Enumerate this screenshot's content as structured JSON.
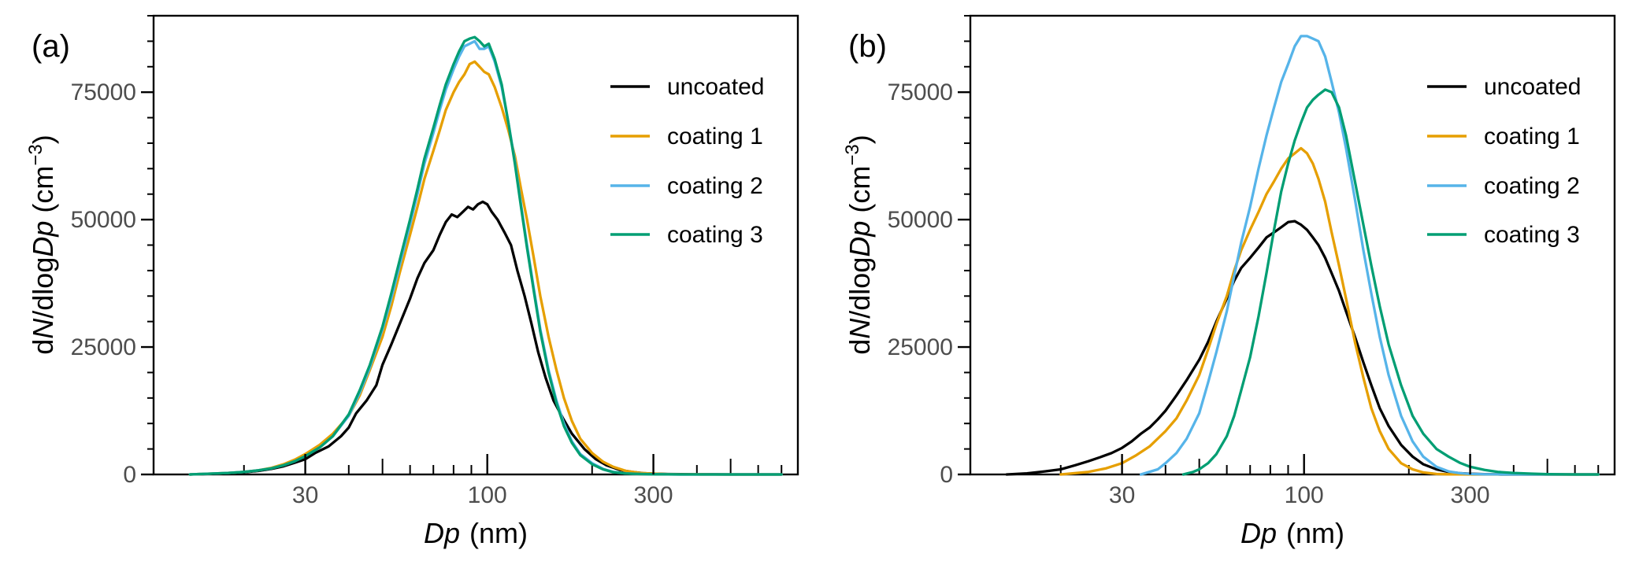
{
  "chart_data": [
    {
      "type": "line",
      "panel_label": "(a)",
      "xlabel_italic": "Dp",
      "xlabel_unit": "(nm)",
      "ylabel_parts": {
        "d": "d",
        "N": "N",
        "mid": "/dlog",
        "Dp": "Dp",
        "unit": " (cm",
        "exp": "−3",
        "close": ")"
      },
      "xscale": "log",
      "xlim": [
        11,
        780
      ],
      "ylim": [
        0,
        90000
      ],
      "xticks": [
        30,
        100,
        300
      ],
      "xtick_labels": [
        "30",
        "100",
        "300"
      ],
      "yticks": [
        0,
        25000,
        50000,
        75000
      ],
      "ytick_labels": [
        "0",
        "25000",
        "50000",
        "75000"
      ],
      "legend_position": "top-right",
      "series": [
        {
          "name": "uncoated",
          "color": "#000000",
          "x": [
            14,
            18,
            20,
            22,
            24,
            26,
            28,
            30,
            32,
            35,
            38,
            40,
            42,
            45,
            48,
            50,
            53,
            56,
            60,
            63,
            66,
            70,
            73,
            76,
            79,
            82,
            85,
            88,
            91,
            94,
            97,
            100,
            103,
            107,
            112,
            117,
            122,
            128,
            134,
            140,
            147,
            155,
            165,
            175,
            190,
            205,
            220,
            240,
            260,
            280,
            300,
            330,
            360,
            400,
            450,
            500,
            550,
            600,
            700
          ],
          "y": [
            0,
            200,
            400,
            700,
            1100,
            1600,
            2300,
            3000,
            4200,
            5500,
            7500,
            9200,
            12000,
            14500,
            17500,
            21500,
            25500,
            29500,
            34500,
            38500,
            41500,
            44000,
            47000,
            49500,
            51000,
            50500,
            51500,
            52500,
            52000,
            53000,
            53500,
            53000,
            51500,
            50000,
            47500,
            45000,
            40000,
            35000,
            29500,
            24000,
            19000,
            14500,
            11000,
            8000,
            5000,
            3000,
            1800,
            900,
            500,
            250,
            150,
            80,
            40,
            20,
            10,
            5,
            0,
            0,
            0
          ]
        },
        {
          "name": "coating 1",
          "color": "#E69F00",
          "x": [
            14,
            18,
            20,
            22,
            24,
            26,
            28,
            30,
            33,
            36,
            40,
            43,
            46,
            50,
            53,
            56,
            60,
            63,
            66,
            70,
            73,
            76,
            80,
            83,
            86,
            89,
            92,
            95,
            98,
            101,
            105,
            110,
            115,
            120,
            125,
            130,
            136,
            142,
            150,
            158,
            166,
            175,
            185,
            200,
            215,
            230,
            250,
            275,
            300,
            330,
            360,
            400,
            450,
            500,
            600,
            700
          ],
          "y": [
            0,
            300,
            500,
            800,
            1300,
            2000,
            2900,
            4000,
            5800,
            8000,
            11500,
            15500,
            20500,
            27000,
            33000,
            39500,
            47000,
            52500,
            58000,
            63500,
            67500,
            71500,
            75000,
            77000,
            78500,
            80500,
            81000,
            80000,
            79000,
            78500,
            76000,
            72000,
            67500,
            62500,
            56000,
            50000,
            42500,
            35000,
            27000,
            20500,
            15000,
            10500,
            7000,
            4200,
            2500,
            1500,
            700,
            300,
            150,
            60,
            20,
            10,
            0,
            0,
            0,
            0
          ]
        },
        {
          "name": "coating 2",
          "color": "#56B4E9",
          "x": [
            14,
            18,
            20,
            22,
            24,
            26,
            28,
            30,
            33,
            36,
            40,
            43,
            46,
            50,
            53,
            56,
            60,
            63,
            66,
            70,
            73,
            76,
            80,
            83,
            86,
            89,
            92,
            95,
            98,
            101,
            105,
            110,
            115,
            120,
            125,
            130,
            136,
            142,
            150,
            158,
            166,
            175,
            185,
            200,
            215,
            230,
            250,
            275,
            300,
            330,
            360,
            400,
            450,
            500,
            600,
            700
          ],
          "y": [
            0,
            300,
            500,
            800,
            1200,
            1800,
            2600,
            3600,
            5300,
            7500,
            11500,
            16000,
            21000,
            28500,
            34500,
            41000,
            49000,
            55000,
            61000,
            67000,
            71500,
            75500,
            79500,
            82000,
            84000,
            84500,
            85000,
            83500,
            83500,
            84000,
            81000,
            76000,
            69000,
            61500,
            53000,
            45000,
            36500,
            28500,
            20500,
            14500,
            10000,
            6500,
            4000,
            2200,
            1100,
            500,
            200,
            100,
            40,
            10,
            0,
            0,
            0,
            0,
            0,
            0
          ]
        },
        {
          "name": "coating 3",
          "color": "#009E73",
          "x": [
            14,
            18,
            20,
            22,
            24,
            26,
            28,
            30,
            33,
            36,
            40,
            43,
            46,
            50,
            53,
            56,
            60,
            63,
            66,
            70,
            73,
            76,
            80,
            83,
            86,
            89,
            92,
            95,
            98,
            101,
            105,
            110,
            115,
            120,
            125,
            130,
            136,
            142,
            150,
            158,
            166,
            175,
            185,
            200,
            215,
            230,
            250,
            275,
            300,
            330,
            360,
            400,
            450,
            500,
            600,
            700
          ],
          "y": [
            0,
            300,
            500,
            800,
            1200,
            1800,
            2600,
            3600,
            5300,
            7500,
            11800,
            16500,
            21500,
            29000,
            35500,
            42000,
            50000,
            56000,
            62000,
            68000,
            72500,
            76500,
            80500,
            83000,
            85000,
            85500,
            85800,
            85000,
            84000,
            84500,
            81500,
            76500,
            69000,
            61000,
            52500,
            44500,
            36000,
            28000,
            20000,
            14000,
            9500,
            6200,
            3800,
            2000,
            1000,
            450,
            180,
            80,
            30,
            10,
            0,
            0,
            0,
            0,
            0,
            0
          ]
        }
      ]
    },
    {
      "type": "line",
      "panel_label": "(b)",
      "xlabel_italic": "Dp",
      "xlabel_unit": "(nm)",
      "ylabel_parts": {
        "d": "d",
        "N": "N",
        "mid": "/dlog",
        "Dp": "Dp",
        "unit": " (cm",
        "exp": "−3",
        "close": ")"
      },
      "xscale": "log",
      "xlim": [
        11,
        780
      ],
      "ylim": [
        0,
        90000
      ],
      "xticks": [
        30,
        100,
        300
      ],
      "xtick_labels": [
        "30",
        "100",
        "300"
      ],
      "yticks": [
        0,
        25000,
        50000,
        75000
      ],
      "ytick_labels": [
        "0",
        "25000",
        "50000",
        "75000"
      ],
      "legend_position": "top-right",
      "series": [
        {
          "name": "uncoated",
          "color": "#000000",
          "x": [
            14,
            16,
            18,
            20,
            22,
            24,
            26,
            28,
            30,
            32,
            34,
            36,
            38,
            40,
            43,
            46,
            50,
            53,
            56,
            60,
            63,
            66,
            70,
            74,
            78,
            82,
            86,
            90,
            94,
            98,
            102,
            106,
            110,
            115,
            120,
            126,
            132,
            140,
            148,
            156,
            165,
            175,
            190,
            205,
            220,
            240,
            260,
            280,
            300,
            330,
            360,
            400,
            450,
            500,
            600,
            700
          ],
          "y": [
            0,
            200,
            600,
            1000,
            1800,
            2600,
            3400,
            4200,
            5200,
            6500,
            8000,
            9200,
            10800,
            12500,
            15500,
            18500,
            22500,
            26000,
            30000,
            34500,
            38000,
            40500,
            42500,
            44500,
            46500,
            47500,
            48500,
            49500,
            49700,
            49000,
            48000,
            46500,
            45000,
            42500,
            39500,
            36000,
            32000,
            27000,
            22000,
            17500,
            13000,
            9500,
            5800,
            3500,
            2000,
            1000,
            500,
            250,
            120,
            50,
            20,
            0,
            0,
            0,
            0,
            0
          ]
        },
        {
          "name": "coating 1",
          "color": "#E69F00",
          "x": [
            20,
            24,
            27,
            30,
            33,
            36,
            40,
            43,
            46,
            50,
            53,
            56,
            60,
            63,
            66,
            70,
            74,
            78,
            82,
            86,
            90,
            94,
            98,
            102,
            106,
            110,
            115,
            120,
            126,
            132,
            140,
            148,
            156,
            165,
            175,
            190,
            205,
            220,
            240,
            260,
            280,
            300,
            330,
            360,
            400,
            450,
            500,
            600,
            700
          ],
          "y": [
            0,
            500,
            1200,
            2200,
            3800,
            5500,
            8500,
            11000,
            14500,
            19500,
            24500,
            29500,
            35000,
            40000,
            44000,
            48000,
            51500,
            55000,
            57500,
            60000,
            62000,
            63000,
            64000,
            63000,
            61000,
            58000,
            53500,
            47500,
            41000,
            34500,
            26000,
            19000,
            13000,
            8500,
            5000,
            2200,
            1000,
            400,
            100,
            30,
            10,
            0,
            0,
            0,
            0,
            0,
            0,
            0,
            0
          ]
        },
        {
          "name": "coating 2",
          "color": "#56B4E9",
          "x": [
            34,
            38,
            40,
            43,
            46,
            50,
            53,
            56,
            60,
            63,
            66,
            70,
            74,
            78,
            82,
            86,
            90,
            94,
            98,
            102,
            106,
            110,
            115,
            120,
            126,
            132,
            140,
            148,
            156,
            165,
            175,
            190,
            205,
            220,
            240,
            260,
            280,
            300,
            330,
            360,
            400,
            450,
            500,
            600,
            700
          ],
          "y": [
            0,
            1000,
            2200,
            4200,
            7000,
            12000,
            18000,
            24000,
            32000,
            39000,
            45500,
            52500,
            60000,
            66500,
            72000,
            77000,
            80500,
            84000,
            86000,
            86000,
            85500,
            85000,
            82000,
            77000,
            71000,
            64000,
            54000,
            44000,
            35500,
            27000,
            19500,
            11500,
            6500,
            3500,
            1500,
            600,
            250,
            100,
            30,
            10,
            0,
            0,
            0,
            0,
            0
          ]
        },
        {
          "name": "coating 3",
          "color": "#009E73",
          "x": [
            45,
            48,
            50,
            53,
            56,
            60,
            63,
            66,
            70,
            74,
            78,
            82,
            86,
            90,
            94,
            98,
            102,
            106,
            110,
            115,
            120,
            126,
            132,
            140,
            148,
            156,
            165,
            175,
            190,
            205,
            220,
            240,
            260,
            280,
            300,
            330,
            360,
            400,
            450,
            500,
            600,
            700
          ],
          "y": [
            0,
            500,
            1000,
            2200,
            4000,
            7500,
            11500,
            16500,
            23000,
            31000,
            39500,
            48000,
            55500,
            61000,
            65500,
            69000,
            72000,
            73500,
            74500,
            75500,
            75000,
            72000,
            66500,
            57500,
            49000,
            41000,
            33000,
            25500,
            17500,
            11500,
            8000,
            5000,
            3500,
            2300,
            1500,
            900,
            500,
            300,
            150,
            60,
            0,
            0
          ]
        }
      ]
    }
  ]
}
